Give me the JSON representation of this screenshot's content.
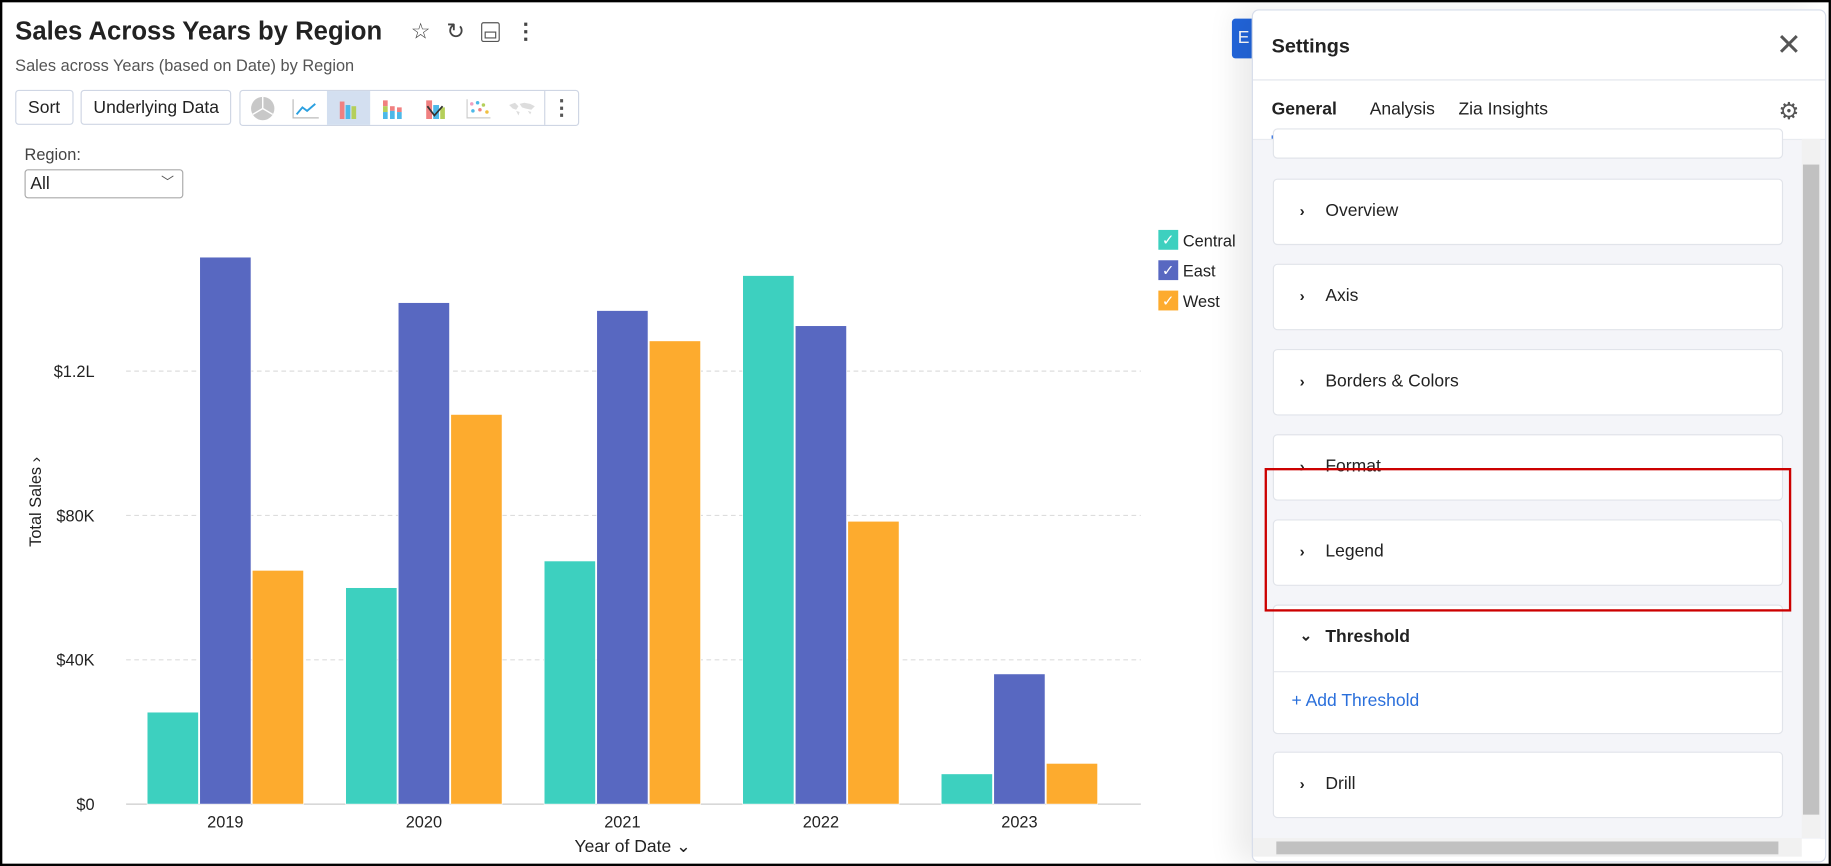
{
  "header": {
    "title": "Sales Across Years by Region",
    "subtitle": "Sales across Years (based on Date) by Region",
    "icons": [
      "star-icon",
      "refresh-icon",
      "save-icon",
      "more-vertical-icon"
    ]
  },
  "toolbar": {
    "sort_label": "Sort",
    "underlying_label": "Underlying Data",
    "chart_types": [
      "pie",
      "line",
      "bar",
      "stacked-bar",
      "combo",
      "scatter",
      "map"
    ],
    "active_chart_type": "bar"
  },
  "filter": {
    "label": "Region:",
    "value": "All"
  },
  "edit_button_label": "E",
  "chart_data": {
    "type": "bar",
    "categories": [
      "2019",
      "2020",
      "2021",
      "2022",
      "2023"
    ],
    "series": [
      {
        "name": "Central",
        "color": "#3dd0bf",
        "values": [
          25500,
          60000,
          67400,
          146500,
          8400
        ]
      },
      {
        "name": "East",
        "color": "#5868c1",
        "values": [
          151600,
          139000,
          136800,
          132600,
          36100
        ]
      },
      {
        "name": "West",
        "color": "#fdab2e",
        "values": [
          64800,
          108000,
          128400,
          78400,
          11300
        ]
      }
    ],
    "yticks": [
      {
        "value": 0,
        "label": "$0"
      },
      {
        "value": 40000,
        "label": "$40K"
      },
      {
        "value": 80000,
        "label": "$80K"
      },
      {
        "value": 120000,
        "label": "$1.2L"
      }
    ],
    "ylim": [
      0,
      160000
    ],
    "xlabel": "Year of Date",
    "ylabel": "Total Sales",
    "grid": true,
    "legend_placement": "right"
  },
  "settings": {
    "title": "Settings",
    "tabs": [
      "General",
      "Analysis",
      "Zia Insights"
    ],
    "active_tab": "General",
    "sections": [
      "Overview",
      "Axis",
      "Borders & Colors",
      "Format",
      "Legend"
    ],
    "threshold": {
      "label": "Threshold",
      "add_label": "+ Add Threshold"
    },
    "drill_label": "Drill"
  }
}
